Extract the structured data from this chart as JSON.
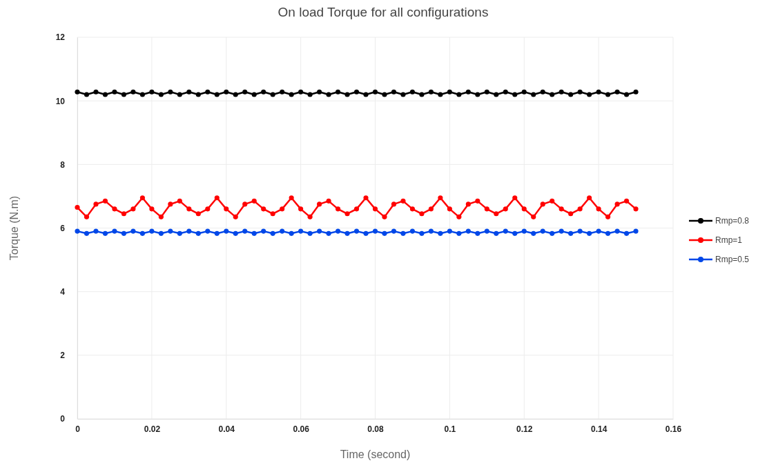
{
  "chart_data": {
    "type": "line",
    "title": "On load Torque for all configurations",
    "xlabel": "Time (second)",
    "ylabel": "Torque (N.m)",
    "x": [
      0,
      0.0025,
      0.005,
      0.0075,
      0.01,
      0.0125,
      0.015,
      0.0175,
      0.02,
      0.0225,
      0.025,
      0.0275,
      0.03,
      0.0325,
      0.035,
      0.0375,
      0.04,
      0.0425,
      0.045,
      0.0475,
      0.05,
      0.0525,
      0.055,
      0.0575,
      0.06,
      0.0625,
      0.065,
      0.0675,
      0.07,
      0.0725,
      0.075,
      0.0775,
      0.08,
      0.0825,
      0.085,
      0.0875,
      0.09,
      0.0925,
      0.095,
      0.0975,
      0.1,
      0.1025,
      0.105,
      0.1075,
      0.11,
      0.1125,
      0.115,
      0.1175,
      0.12,
      0.1225,
      0.125,
      0.1275,
      0.13,
      0.1325,
      0.135,
      0.1375,
      0.14,
      0.1425,
      0.145,
      0.1475,
      0.15
    ],
    "series": [
      {
        "name": "Rmp=0.8",
        "color": "#000000",
        "values": [
          10.28,
          10.2,
          10.28,
          10.2,
          10.28,
          10.2,
          10.28,
          10.2,
          10.28,
          10.2,
          10.28,
          10.2,
          10.28,
          10.2,
          10.28,
          10.2,
          10.28,
          10.2,
          10.28,
          10.2,
          10.28,
          10.2,
          10.28,
          10.2,
          10.28,
          10.2,
          10.28,
          10.2,
          10.28,
          10.2,
          10.28,
          10.2,
          10.28,
          10.2,
          10.28,
          10.2,
          10.28,
          10.2,
          10.28,
          10.2,
          10.28,
          10.2,
          10.28,
          10.2,
          10.28,
          10.2,
          10.28,
          10.2,
          10.28,
          10.2,
          10.28,
          10.2,
          10.28,
          10.2,
          10.28,
          10.2,
          10.28,
          10.2,
          10.28,
          10.2,
          10.28
        ]
      },
      {
        "name": "Rmp=1",
        "color": "#ff0000",
        "values": [
          6.65,
          6.35,
          6.75,
          6.85,
          6.6,
          6.45,
          6.6,
          6.95,
          6.6,
          6.35,
          6.75,
          6.85,
          6.6,
          6.45,
          6.6,
          6.95,
          6.6,
          6.35,
          6.75,
          6.85,
          6.6,
          6.45,
          6.6,
          6.95,
          6.6,
          6.35,
          6.75,
          6.85,
          6.6,
          6.45,
          6.6,
          6.95,
          6.6,
          6.35,
          6.75,
          6.85,
          6.6,
          6.45,
          6.6,
          6.95,
          6.6,
          6.35,
          6.75,
          6.85,
          6.6,
          6.45,
          6.6,
          6.95,
          6.6,
          6.35,
          6.75,
          6.85,
          6.6,
          6.45,
          6.6,
          6.95,
          6.6,
          6.35,
          6.75,
          6.85,
          6.6
        ]
      },
      {
        "name": "Rmp=0.5",
        "color": "#0047e8",
        "values": [
          5.9,
          5.83,
          5.9,
          5.83,
          5.9,
          5.83,
          5.9,
          5.83,
          5.9,
          5.83,
          5.9,
          5.83,
          5.9,
          5.83,
          5.9,
          5.83,
          5.9,
          5.83,
          5.9,
          5.83,
          5.9,
          5.83,
          5.9,
          5.83,
          5.9,
          5.83,
          5.9,
          5.83,
          5.9,
          5.83,
          5.9,
          5.83,
          5.9,
          5.83,
          5.9,
          5.83,
          5.9,
          5.83,
          5.9,
          5.83,
          5.9,
          5.83,
          5.9,
          5.83,
          5.9,
          5.83,
          5.9,
          5.83,
          5.9,
          5.83,
          5.9,
          5.83,
          5.9,
          5.83,
          5.9,
          5.83,
          5.9,
          5.83,
          5.9,
          5.83,
          5.9
        ]
      }
    ],
    "xlim": [
      0,
      0.16
    ],
    "xticks": [
      0,
      0.02,
      0.04,
      0.06,
      0.08,
      0.1,
      0.12,
      0.14,
      0.16
    ],
    "ylim": [
      0,
      12
    ],
    "yticks": [
      0,
      2,
      4,
      6,
      8,
      10,
      12
    ],
    "grid": true,
    "legend": "right",
    "marker": "circle",
    "line_style": "solid"
  }
}
